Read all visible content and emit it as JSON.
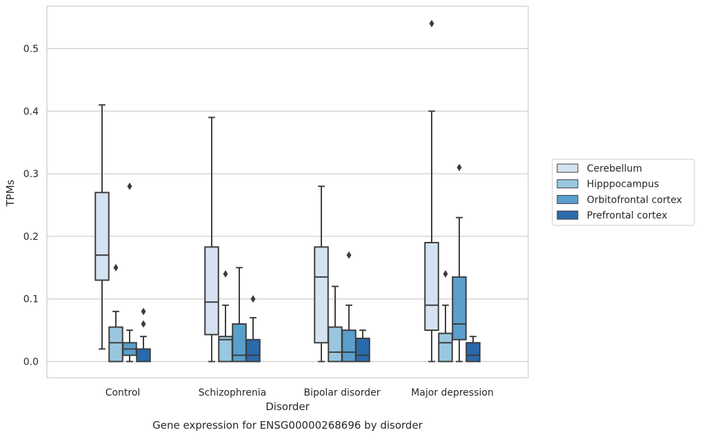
{
  "chart_data": {
    "type": "box",
    "title": "",
    "caption": "Gene expression for ENSG00000268696 by disorder",
    "xlabel": "Disorder",
    "ylabel": "TPMs",
    "ylim": [
      -0.025,
      0.57
    ],
    "yticks": [
      "0.0",
      "0.1",
      "0.2",
      "0.3",
      "0.4",
      "0.5"
    ],
    "grid": "horizontal",
    "legend_position": "right",
    "categories": [
      "Control",
      "Schizophrenia",
      "Bipolar disorder",
      "Major depression"
    ],
    "series": [
      {
        "name": "Cerebellum",
        "color": "#d4e2f1",
        "boxes": [
          {
            "whisker_low": 0.02,
            "q1": 0.13,
            "median": 0.17,
            "q3": 0.27,
            "whisker_high": 0.41,
            "outliers": []
          },
          {
            "whisker_low": 0.0,
            "q1": 0.043,
            "median": 0.095,
            "q3": 0.183,
            "whisker_high": 0.39,
            "outliers": []
          },
          {
            "whisker_low": 0.0,
            "q1": 0.03,
            "median": 0.135,
            "q3": 0.183,
            "whisker_high": 0.28,
            "outliers": []
          },
          {
            "whisker_low": 0.0,
            "q1": 0.05,
            "median": 0.09,
            "q3": 0.19,
            "whisker_high": 0.4,
            "outliers": [
              0.54
            ]
          }
        ]
      },
      {
        "name": "Hipppocampus",
        "color": "#9ac7e0",
        "boxes": [
          {
            "whisker_low": 0.0,
            "q1": 0.0,
            "median": 0.03,
            "q3": 0.055,
            "whisker_high": 0.08,
            "outliers": [
              0.15
            ]
          },
          {
            "whisker_low": 0.0,
            "q1": 0.0,
            "median": 0.035,
            "q3": 0.04,
            "whisker_high": 0.09,
            "outliers": [
              0.14
            ]
          },
          {
            "whisker_low": 0.0,
            "q1": 0.0,
            "median": 0.015,
            "q3": 0.055,
            "whisker_high": 0.12,
            "outliers": []
          },
          {
            "whisker_low": 0.0,
            "q1": 0.0,
            "median": 0.03,
            "q3": 0.045,
            "whisker_high": 0.09,
            "outliers": [
              0.14
            ]
          }
        ]
      },
      {
        "name": "Orbitofrontal cortex",
        "color": "#5a9fcc",
        "boxes": [
          {
            "whisker_low": 0.0,
            "q1": 0.01,
            "median": 0.02,
            "q3": 0.03,
            "whisker_high": 0.05,
            "outliers": [
              0.28
            ]
          },
          {
            "whisker_low": 0.0,
            "q1": 0.0,
            "median": 0.01,
            "q3": 0.06,
            "whisker_high": 0.15,
            "outliers": []
          },
          {
            "whisker_low": 0.0,
            "q1": 0.0,
            "median": 0.015,
            "q3": 0.05,
            "whisker_high": 0.09,
            "outliers": [
              0.17
            ]
          },
          {
            "whisker_low": 0.0,
            "q1": 0.035,
            "median": 0.06,
            "q3": 0.135,
            "whisker_high": 0.23,
            "outliers": [
              0.31
            ]
          }
        ]
      },
      {
        "name": "Prefrontal cortex",
        "color": "#2a6aac",
        "boxes": [
          {
            "whisker_low": 0.0,
            "q1": 0.0,
            "median": 0.0,
            "q3": 0.02,
            "whisker_high": 0.04,
            "outliers": [
              0.06,
              0.08
            ]
          },
          {
            "whisker_low": 0.0,
            "q1": 0.0,
            "median": 0.01,
            "q3": 0.035,
            "whisker_high": 0.07,
            "outliers": [
              0.1
            ]
          },
          {
            "whisker_low": 0.0,
            "q1": 0.0,
            "median": 0.01,
            "q3": 0.037,
            "whisker_high": 0.05,
            "outliers": []
          },
          {
            "whisker_low": 0.0,
            "q1": 0.0,
            "median": 0.01,
            "q3": 0.03,
            "whisker_high": 0.04,
            "outliers": []
          }
        ]
      }
    ]
  }
}
